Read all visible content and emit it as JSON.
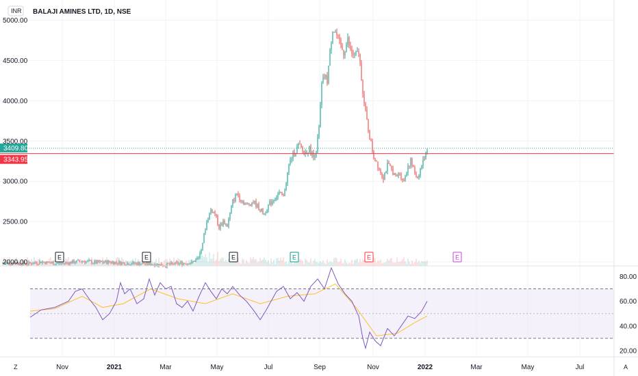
{
  "header": {
    "currency": "INR",
    "symbol_title": "BALAJI AMINES LTD, 1D, NSE"
  },
  "footer": {
    "left_label": "Z",
    "right_label": "A"
  },
  "colors": {
    "up": "#26a69a",
    "down": "#ef5350",
    "rsi_line": "#7e57c2",
    "rsi_ma": "#fbc02d",
    "rsi_band": "#ede7f6",
    "last_price": "#26a69a",
    "prev_close": "#f23645"
  },
  "chart_data": [
    {
      "type": "candlestick",
      "title": "BALAJI AMINES LTD, 1D, NSE",
      "y_axis": {
        "ticks": [
          "2000.00",
          "2500.00",
          "3000.00",
          "3500.00",
          "4000.00",
          "4500.00",
          "5000.00"
        ],
        "range": [
          1950,
          5250
        ]
      },
      "x_axis": {
        "ticks": [
          "Nov",
          "2021",
          "Mar",
          "May",
          "Jul",
          "Sep",
          "Nov",
          "2022",
          "Mar",
          "May",
          "Jul"
        ]
      },
      "price_labels": {
        "last_price": "3409.80",
        "prev_close": "3343.95"
      },
      "price_path": [
        [
          0,
          1985
        ],
        [
          20,
          1990
        ],
        [
          40,
          1975
        ],
        [
          60,
          2000
        ],
        [
          80,
          1980
        ],
        [
          100,
          1990
        ],
        [
          120,
          2010
        ],
        [
          140,
          1990
        ],
        [
          160,
          2000
        ],
        [
          180,
          1985
        ],
        [
          200,
          1980
        ],
        [
          220,
          1975
        ],
        [
          240,
          1960
        ],
        [
          260,
          1980
        ],
        [
          280,
          1990
        ],
        [
          290,
          2050
        ],
        [
          296,
          2250
        ],
        [
          302,
          2500
        ],
        [
          308,
          2650
        ],
        [
          314,
          2600
        ],
        [
          320,
          2430
        ],
        [
          326,
          2500
        ],
        [
          332,
          2450
        ],
        [
          340,
          2750
        ],
        [
          346,
          2850
        ],
        [
          352,
          2780
        ],
        [
          360,
          2700
        ],
        [
          370,
          2750
        ],
        [
          380,
          2650
        ],
        [
          386,
          2600
        ],
        [
          392,
          2700
        ],
        [
          400,
          2780
        ],
        [
          408,
          2850
        ],
        [
          414,
          2800
        ],
        [
          418,
          3000
        ],
        [
          422,
          3200
        ],
        [
          426,
          3300
        ],
        [
          430,
          3350
        ],
        [
          436,
          3450
        ],
        [
          444,
          3350
        ],
        [
          452,
          3400
        ],
        [
          458,
          3300
        ],
        [
          462,
          3400
        ],
        [
          466,
          3650
        ],
        [
          470,
          4200
        ],
        [
          474,
          4300
        ],
        [
          478,
          4250
        ],
        [
          482,
          4600
        ],
        [
          486,
          4900
        ],
        [
          490,
          4850
        ],
        [
          496,
          4700
        ],
        [
          502,
          4600
        ],
        [
          508,
          4750
        ],
        [
          512,
          4620
        ],
        [
          518,
          4550
        ],
        [
          524,
          4600
        ],
        [
          528,
          4300
        ],
        [
          532,
          3950
        ],
        [
          536,
          3750
        ],
        [
          540,
          3550
        ],
        [
          546,
          3300
        ],
        [
          550,
          3250
        ],
        [
          554,
          3150
        ],
        [
          560,
          3050
        ],
        [
          566,
          3200
        ],
        [
          572,
          3150
        ],
        [
          578,
          3050
        ],
        [
          584,
          3100
        ],
        [
          590,
          3000
        ],
        [
          596,
          3200
        ],
        [
          600,
          3250
        ],
        [
          606,
          3100
        ],
        [
          610,
          3050
        ],
        [
          616,
          3200
        ],
        [
          620,
          3300
        ],
        [
          624,
          3410
        ]
      ],
      "earnings_markers": [
        {
          "label": "E",
          "style": "past"
        },
        {
          "label": "E",
          "style": "past"
        },
        {
          "label": "E",
          "style": "past"
        },
        {
          "label": "E",
          "style": "beat"
        },
        {
          "label": "E",
          "style": "miss"
        },
        {
          "label": "E",
          "style": "upcoming"
        }
      ]
    },
    {
      "type": "line",
      "title": "",
      "y_axis": {
        "ticks": [
          "20.00",
          "40.00",
          "60.00",
          "80.00"
        ],
        "range": [
          15,
          88
        ]
      },
      "bands": {
        "upper": 70,
        "middle": 50,
        "lower": 30
      },
      "rsi_path": [
        [
          44,
          47
        ],
        [
          60,
          53
        ],
        [
          80,
          55
        ],
        [
          100,
          60
        ],
        [
          110,
          68
        ],
        [
          120,
          70
        ],
        [
          130,
          62
        ],
        [
          140,
          55
        ],
        [
          150,
          45
        ],
        [
          160,
          50
        ],
        [
          170,
          60
        ],
        [
          176,
          75
        ],
        [
          182,
          66
        ],
        [
          190,
          70
        ],
        [
          200,
          58
        ],
        [
          210,
          62
        ],
        [
          218,
          78
        ],
        [
          226,
          65
        ],
        [
          234,
          75
        ],
        [
          242,
          70
        ],
        [
          250,
          72
        ],
        [
          258,
          58
        ],
        [
          266,
          55
        ],
        [
          274,
          60
        ],
        [
          282,
          52
        ],
        [
          290,
          63
        ],
        [
          300,
          75
        ],
        [
          308,
          68
        ],
        [
          316,
          62
        ],
        [
          324,
          70
        ],
        [
          332,
          66
        ],
        [
          340,
          72
        ],
        [
          350,
          65
        ],
        [
          360,
          60
        ],
        [
          370,
          53
        ],
        [
          380,
          45
        ],
        [
          388,
          52
        ],
        [
          396,
          60
        ],
        [
          404,
          68
        ],
        [
          414,
          72
        ],
        [
          424,
          62
        ],
        [
          434,
          67
        ],
        [
          444,
          60
        ],
        [
          454,
          72
        ],
        [
          464,
          78
        ],
        [
          474,
          70
        ],
        [
          484,
          87
        ],
        [
          494,
          74
        ],
        [
          504,
          66
        ],
        [
          514,
          60
        ],
        [
          524,
          48
        ],
        [
          530,
          30
        ],
        [
          534,
          22
        ],
        [
          540,
          35
        ],
        [
          548,
          28
        ],
        [
          556,
          24
        ],
        [
          566,
          38
        ],
        [
          576,
          32
        ],
        [
          586,
          40
        ],
        [
          596,
          48
        ],
        [
          606,
          46
        ],
        [
          616,
          52
        ],
        [
          624,
          60
        ]
      ],
      "ma_path": [
        [
          44,
          52
        ],
        [
          80,
          54
        ],
        [
          120,
          64
        ],
        [
          150,
          55
        ],
        [
          180,
          58
        ],
        [
          220,
          70
        ],
        [
          260,
          62
        ],
        [
          300,
          58
        ],
        [
          340,
          66
        ],
        [
          380,
          58
        ],
        [
          420,
          64
        ],
        [
          460,
          66
        ],
        [
          490,
          74
        ],
        [
          520,
          55
        ],
        [
          550,
          32
        ],
        [
          580,
          34
        ],
        [
          610,
          44
        ],
        [
          624,
          48
        ]
      ]
    }
  ]
}
